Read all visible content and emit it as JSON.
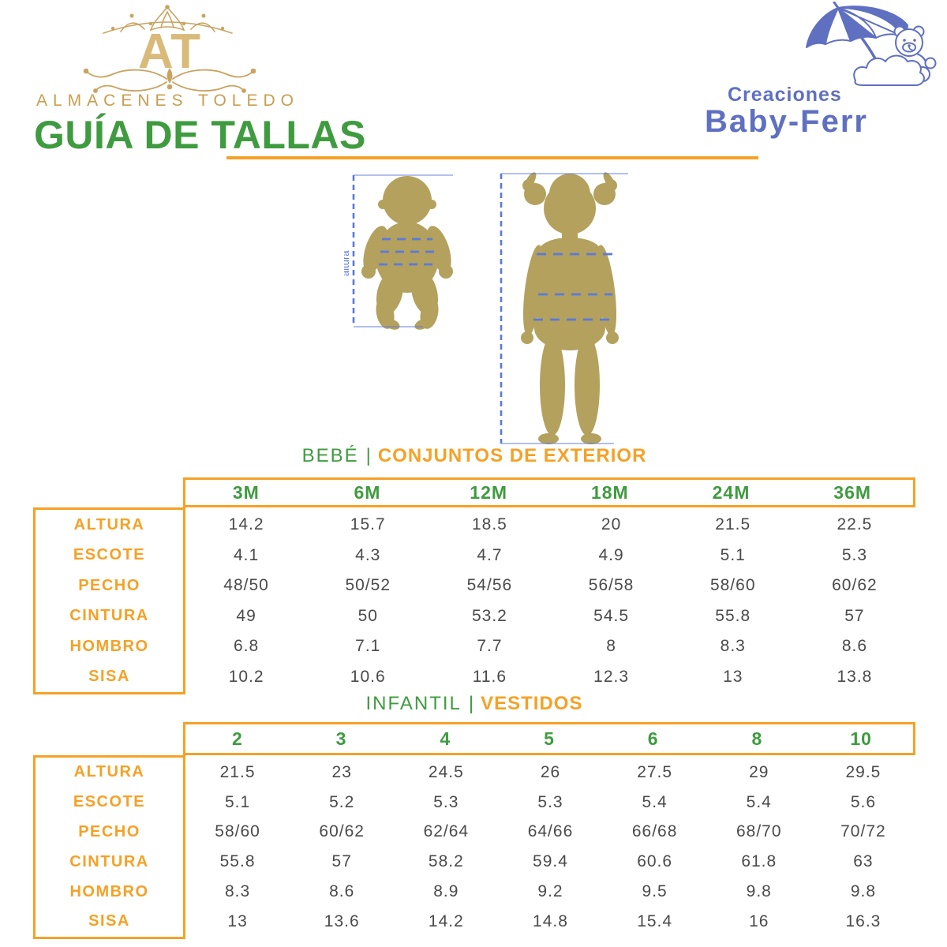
{
  "brand_left": {
    "monogram": "AT",
    "name": "ALMACENES TOLEDO",
    "title": "GUÍA DE TALLAS"
  },
  "brand_right": {
    "line1": "Creaciones",
    "line2": "Baby-Ferr"
  },
  "figure": {
    "height_label": "altura"
  },
  "tables": [
    {
      "section_label": "BEBÉ",
      "separator": "|",
      "section_title": "CONJUNTOS DE EXTERIOR",
      "columns": [
        "3M",
        "6M",
        "12M",
        "18M",
        "24M",
        "36M"
      ],
      "rows": [
        {
          "label": "ALTURA",
          "values": [
            "14.2",
            "15.7",
            "18.5",
            "20",
            "21.5",
            "22.5"
          ]
        },
        {
          "label": "ESCOTE",
          "values": [
            "4.1",
            "4.3",
            "4.7",
            "4.9",
            "5.1",
            "5.3"
          ]
        },
        {
          "label": "PECHO",
          "values": [
            "48/50",
            "50/52",
            "54/56",
            "56/58",
            "58/60",
            "60/62"
          ]
        },
        {
          "label": "CINTURA",
          "values": [
            "49",
            "50",
            "53.2",
            "54.5",
            "55.8",
            "57"
          ]
        },
        {
          "label": "HOMBRO",
          "values": [
            "6.8",
            "7.1",
            "7.7",
            "8",
            "8.3",
            "8.6"
          ]
        },
        {
          "label": "SISA",
          "values": [
            "10.2",
            "10.6",
            "11.6",
            "12.3",
            "13",
            "13.8"
          ]
        }
      ]
    },
    {
      "section_label": "INFANTIL",
      "separator": "|",
      "section_title": "VESTIDOS",
      "columns": [
        "2",
        "3",
        "4",
        "5",
        "6",
        "8",
        "10"
      ],
      "rows": [
        {
          "label": "ALTURA",
          "values": [
            "21.5",
            "23",
            "24.5",
            "26",
            "27.5",
            "29",
            "29.5"
          ]
        },
        {
          "label": "ESCOTE",
          "values": [
            "5.1",
            "5.2",
            "5.3",
            "5.3",
            "5.4",
            "5.4",
            "5.6"
          ]
        },
        {
          "label": "PECHO",
          "values": [
            "58/60",
            "60/62",
            "62/64",
            "64/66",
            "66/68",
            "68/70",
            "70/72"
          ]
        },
        {
          "label": "CINTURA",
          "values": [
            "55.8",
            "57",
            "58.2",
            "59.4",
            "60.6",
            "61.8",
            "63"
          ]
        },
        {
          "label": "HOMBRO",
          "values": [
            "8.3",
            "8.6",
            "8.9",
            "9.2",
            "9.5",
            "9.8",
            "9.8"
          ]
        },
        {
          "label": "SISA",
          "values": [
            "13",
            "13.6",
            "14.2",
            "14.8",
            "15.4",
            "16",
            "16.3"
          ]
        }
      ]
    }
  ],
  "colors": {
    "green": "#3f9b3f",
    "orange": "#f5a126",
    "gold": "#c9a35f",
    "gold_light": "#d9ba79",
    "silhouette_khaki": "#b3a15d",
    "measure_blue": "#5b79dd",
    "logo_blue": "#5f70c1",
    "value_gray": "#4a4a4a"
  }
}
